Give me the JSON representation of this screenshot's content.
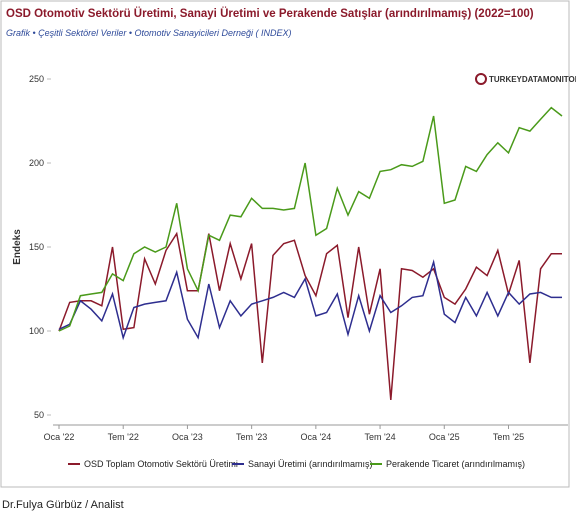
{
  "chart_data": {
    "type": "line",
    "title": "OSD Otomotiv Sektörü Üretimi, Sanayi Üretimi ve Perakende Satışlar (arındırılmamış) (2022=100)",
    "subtitle": "Grafik • Çeşitli Sektörel Veriler • Otomotiv Sanayicileri Derneği ( INDEX)",
    "watermark": "TURKEYDATAMONITOR",
    "y_label": "Endeks",
    "footer": "Dr.Fulya Gürbüz / Analist",
    "categories": [
      "Oca '22",
      null,
      null,
      null,
      null,
      null,
      "Tem '22",
      null,
      null,
      null,
      null,
      null,
      "Oca '23",
      null,
      null,
      null,
      null,
      null,
      "Tem '23",
      null,
      null,
      null,
      null,
      null,
      "Oca '24",
      null,
      null,
      null,
      null,
      null,
      "Tem '24",
      null,
      null,
      null,
      null,
      null,
      "Oca '25",
      null,
      null,
      null,
      null,
      null,
      "Tem '25",
      null,
      null,
      null,
      null,
      null
    ],
    "series": [
      {
        "name": "OSD Toplam Otomotiv Sektörü Üretimi",
        "color": "#8b1a2b",
        "values": [
          100,
          117,
          118,
          118,
          115,
          150,
          101,
          102,
          143,
          128,
          148,
          158,
          124,
          124,
          158,
          124,
          152,
          131,
          152,
          81,
          145,
          152,
          154,
          133,
          121,
          146,
          151,
          108,
          150,
          110,
          137,
          59,
          137,
          136,
          132,
          137,
          120,
          116,
          125,
          138,
          133,
          148,
          122,
          142,
          81,
          137,
          146,
          146
        ]
      },
      {
        "name": "Sanayi Üretimi (arındırılmamış)",
        "color": "#2e2e8f",
        "values": [
          101,
          104,
          118,
          113,
          106,
          122,
          96,
          114,
          116,
          117,
          118,
          135,
          107,
          96,
          128,
          102,
          118,
          109,
          116,
          118,
          120,
          123,
          120,
          131,
          109,
          111,
          122,
          98,
          121,
          100,
          121,
          111,
          115,
          120,
          121,
          141,
          110,
          105,
          120,
          109,
          123,
          109,
          123,
          116,
          122,
          123,
          120,
          120
        ]
      },
      {
        "name": "Perakende Ticaret (arındırılmamış)",
        "color": "#4a9a1a",
        "values": [
          100,
          103,
          121,
          122,
          123,
          134,
          130,
          146,
          150,
          147,
          150,
          176,
          137,
          124,
          157,
          154,
          169,
          168,
          179,
          173,
          173,
          172,
          173,
          200,
          157,
          161,
          185,
          169,
          183,
          179,
          195,
          196,
          199,
          198,
          201,
          228,
          176,
          178,
          198,
          195,
          205,
          212,
          206,
          221,
          219,
          226,
          233,
          228
        ]
      }
    ],
    "ylim": [
      50,
      250
    ],
    "yticks": [
      50,
      100,
      150,
      200,
      250
    ]
  }
}
